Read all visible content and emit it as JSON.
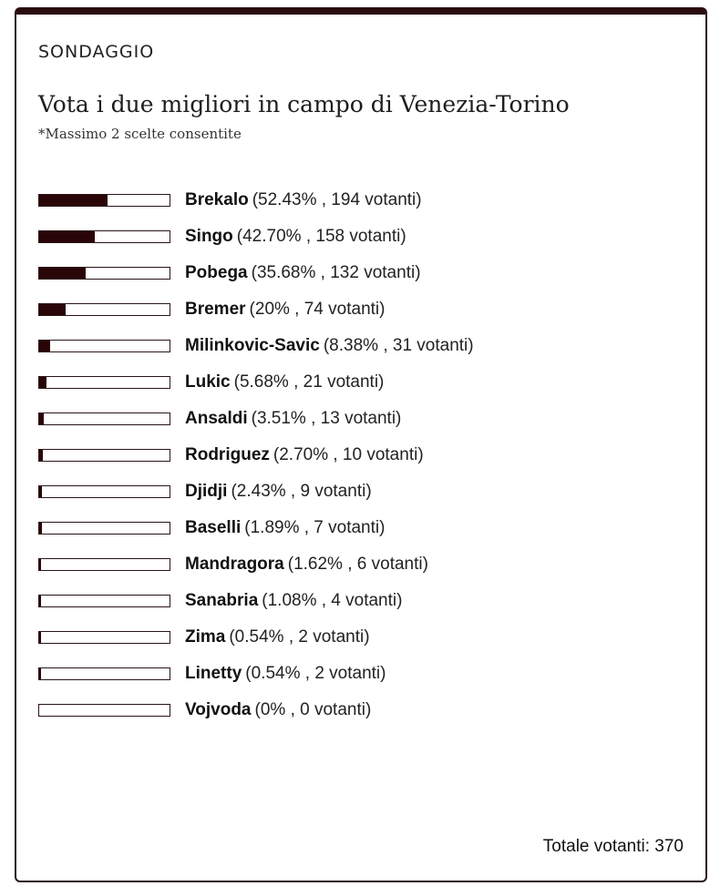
{
  "poll": {
    "kicker": "SONDAGGIO",
    "title": "Vota i due migliori in campo di Venezia-Torino",
    "note": "*Massimo 2 scelte consentite",
    "options": [
      {
        "name": "Brekalo",
        "stats": "(52.43% , 194 votanti)",
        "percent": 52.43
      },
      {
        "name": "Singo",
        "stats": "(42.70% , 158 votanti)",
        "percent": 42.7
      },
      {
        "name": "Pobega",
        "stats": "(35.68% , 132 votanti)",
        "percent": 35.68
      },
      {
        "name": "Bremer",
        "stats": "(20% , 74 votanti)",
        "percent": 20
      },
      {
        "name": "Milinkovic-Savic",
        "stats": "(8.38% , 31 votanti)",
        "percent": 8.38
      },
      {
        "name": "Lukic",
        "stats": "(5.68% , 21 votanti)",
        "percent": 5.68
      },
      {
        "name": "Ansaldi",
        "stats": "(3.51% , 13 votanti)",
        "percent": 3.51
      },
      {
        "name": "Rodriguez",
        "stats": "(2.70% , 10 votanti)",
        "percent": 2.7
      },
      {
        "name": "Djidji",
        "stats": "(2.43% , 9 votanti)",
        "percent": 2.43
      },
      {
        "name": "Baselli",
        "stats": "(1.89% , 7 votanti)",
        "percent": 1.89
      },
      {
        "name": "Mandragora",
        "stats": "(1.62% , 6 votanti)",
        "percent": 1.62
      },
      {
        "name": "Sanabria",
        "stats": "(1.08% , 4 votanti)",
        "percent": 1.08
      },
      {
        "name": "Zima",
        "stats": "(0.54% , 2 votanti)",
        "percent": 0.54
      },
      {
        "name": "Linetty",
        "stats": "(0.54% , 2 votanti)",
        "percent": 0.54
      },
      {
        "name": "Vojvoda",
        "stats": "(0% , 0 votanti)",
        "percent": 0
      }
    ],
    "total_label": "Totale votanti: 370"
  },
  "colors": {
    "accent": "#2a0507",
    "border": "#2a1416"
  }
}
